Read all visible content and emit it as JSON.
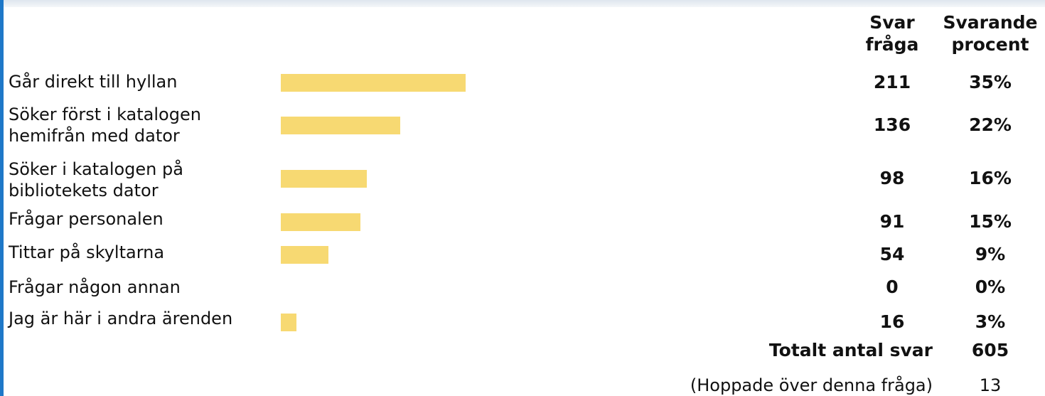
{
  "chart_data": {
    "type": "bar",
    "orientation": "horizontal",
    "column_headers": {
      "count": [
        "Svar",
        "fråga"
      ],
      "percent": [
        "Svarande",
        "procent"
      ]
    },
    "categories": [
      "Går direkt till hyllan",
      "Söker först i katalogen\nhemifrån med dator",
      "Söker i katalogen på\nbibliotekets dator",
      "Frågar personalen",
      "Tittar på skyltarna",
      "Frågar någon annan",
      "Jag är här i andra ärenden"
    ],
    "values": [
      211,
      136,
      98,
      91,
      54,
      0,
      16
    ],
    "percent_labels": [
      "35%",
      "22%",
      "16%",
      "15%",
      "9%",
      "0%",
      "3%"
    ],
    "percent_values": [
      35,
      22,
      16,
      15,
      9,
      0,
      3
    ],
    "bar_color": "#f7d972",
    "total_label": "Totalt antal svar",
    "total_value": "605",
    "skipped_label": "(Hoppade över denna fråga)",
    "skipped_value": "13"
  }
}
